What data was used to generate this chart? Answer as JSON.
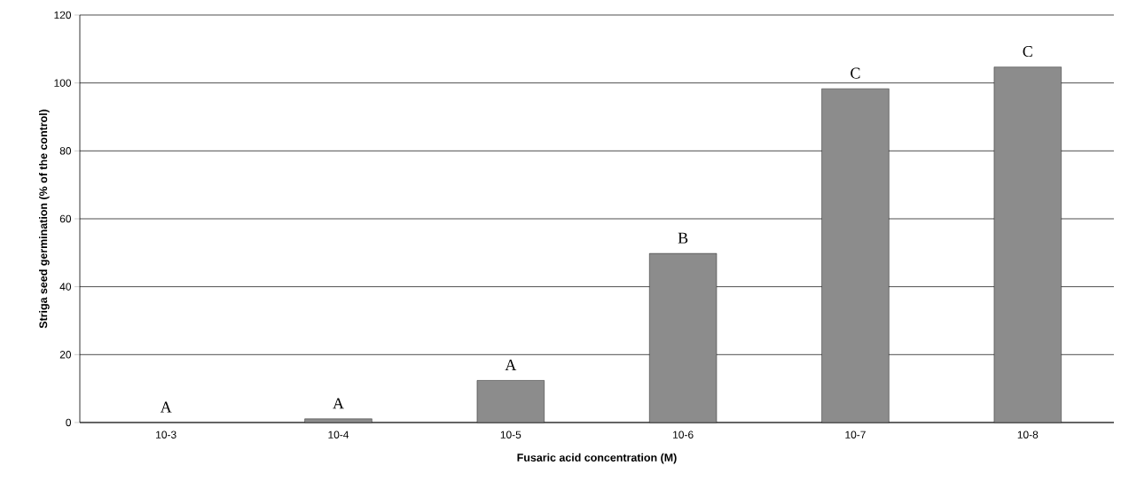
{
  "chart_data": {
    "type": "bar",
    "xlabel": "Fusaric acid concentration (M)",
    "ylabel": "Striga seed germination (% of the control)",
    "categories": [
      "10-3",
      "10-4",
      "10-5",
      "10-6",
      "10-7",
      "10-8"
    ],
    "values": [
      0,
      1.1,
      12.4,
      49.8,
      98.3,
      104.7
    ],
    "color": "#8c8c8c",
    "ylim": [
      0,
      120
    ],
    "yticks": [
      0,
      20,
      40,
      60,
      80,
      100,
      120
    ],
    "grid": "y",
    "annotations": [
      {
        "text": "A",
        "x": "10-3",
        "y": 0
      },
      {
        "text": "A",
        "x": "10-4",
        "y": 1.1
      },
      {
        "text": "A",
        "x": "10-5",
        "y": 12.4
      },
      {
        "text": "B",
        "x": "10-6",
        "y": 49.8
      },
      {
        "text": "C",
        "x": "10-7",
        "y": 98.3
      },
      {
        "text": "C",
        "x": "10-8",
        "y": 104.7
      }
    ]
  }
}
